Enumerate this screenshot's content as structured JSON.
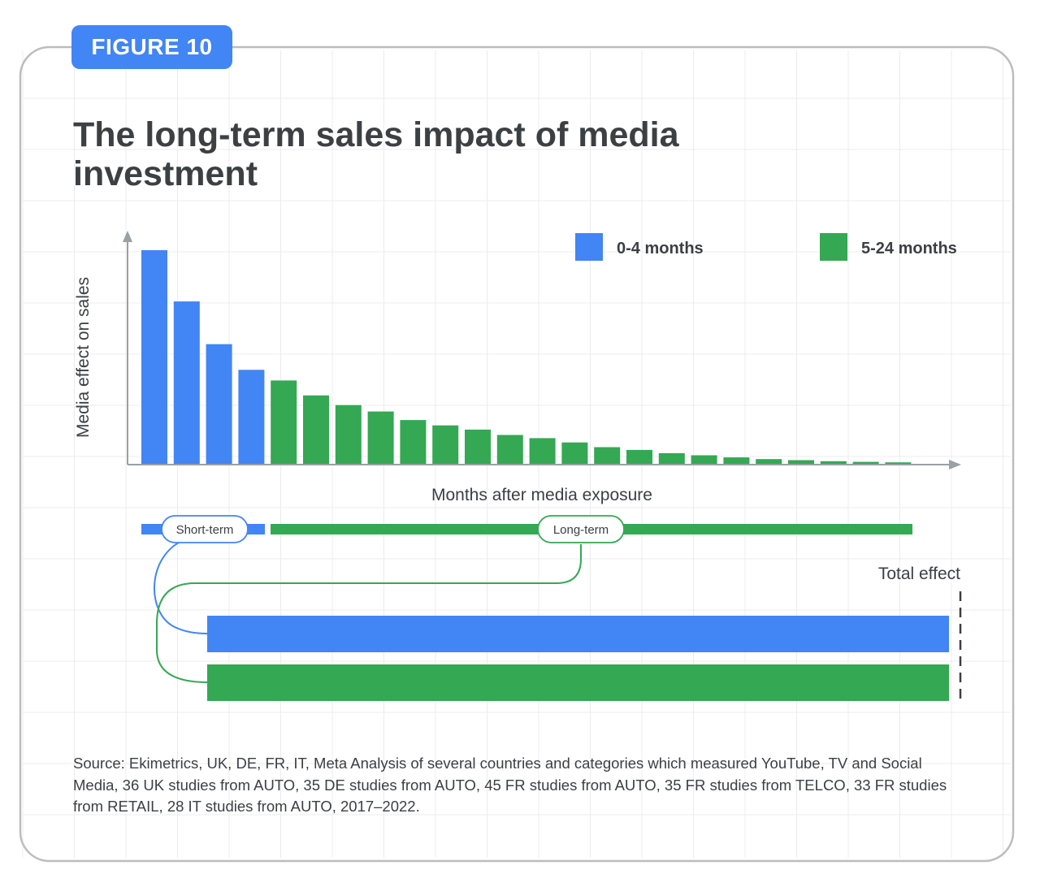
{
  "figure_label": "FIGURE 10",
  "title": "The long-term sales impact of media investment",
  "source_note": "Source: Ekimetrics, UK, DE, FR, IT, Meta Analysis of several countries and categories which measured YouTube, TV and Social Media, 36 UK studies from AUTO, 35 DE studies from AUTO, 45 FR studies from AUTO, 35 FR studies from TELCO, 33 FR studies from RETAIL, 28 IT studies from AUTO, 2017–2022.",
  "colors": {
    "short_term": "#4285f4",
    "long_term": "#34a853",
    "text": "#3c4043",
    "axis": "#9aa0a6",
    "grid": "#ececec",
    "frame": "#bdbdbd"
  },
  "chart_data": {
    "type": "bar",
    "xlabel": "Months after media exposure",
    "ylabel": "Media effect on sales",
    "legend_position": "top-right",
    "grid": true,
    "series": [
      {
        "name": "0-4 months",
        "color": "#4285f4",
        "values": [
          100,
          76,
          56,
          44,
          null,
          null,
          null,
          null,
          null,
          null,
          null,
          null,
          null,
          null,
          null,
          null,
          null,
          null,
          null,
          null,
          null,
          null,
          null,
          null
        ]
      },
      {
        "name": "5-24 months",
        "color": "#34a853",
        "values": [
          null,
          null,
          null,
          null,
          39,
          32,
          27.5,
          24.5,
          20.5,
          18,
          16,
          13.5,
          12,
          10,
          7.8,
          6.5,
          5,
          4,
          3,
          2.2,
          1.7,
          1.2,
          0.9,
          0.7
        ]
      }
    ],
    "ylim": [
      0,
      100
    ]
  },
  "timeline": {
    "short_label": "Short-term",
    "long_label": "Long-term"
  },
  "total": {
    "label": "Total effect",
    "short_term_share": 1,
    "long_term_share": 1
  }
}
